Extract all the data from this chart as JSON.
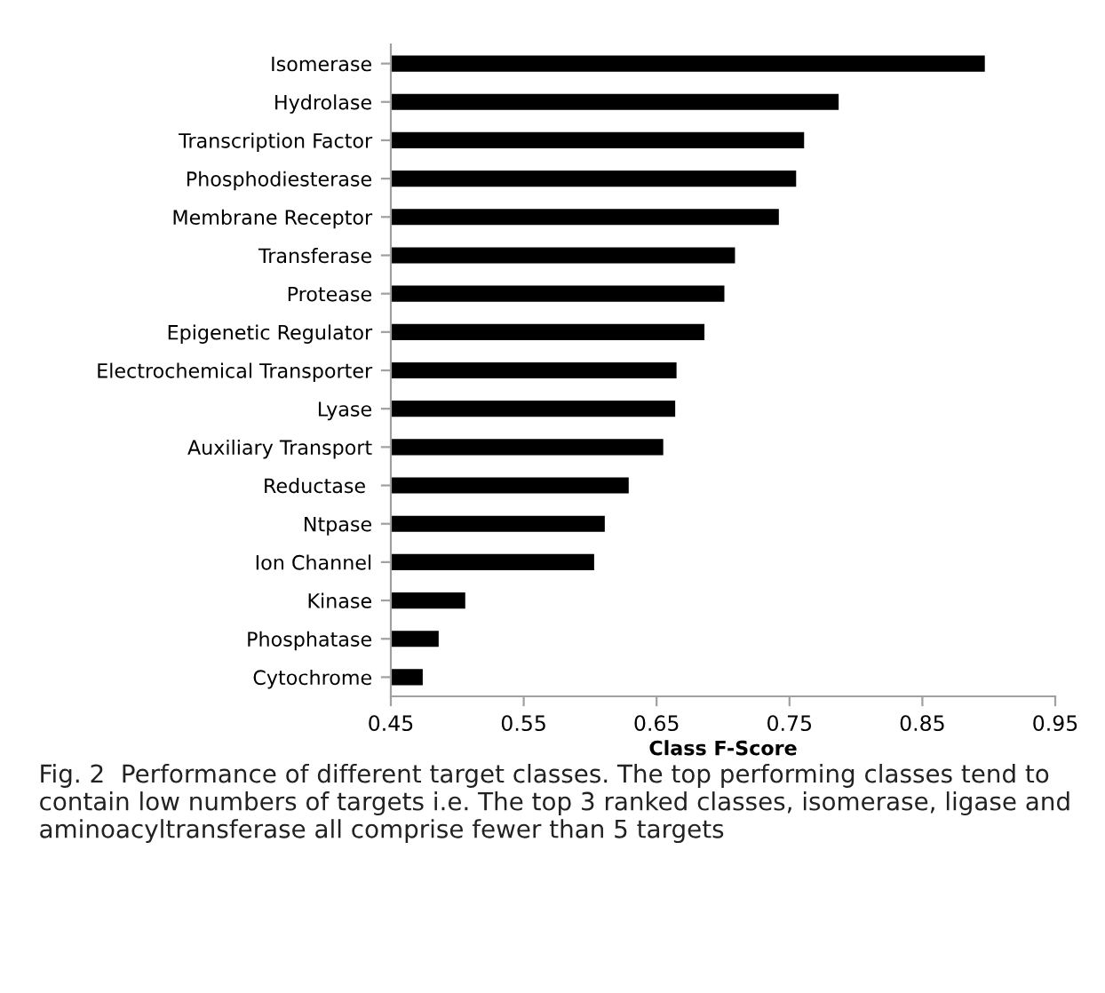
{
  "chart_data": {
    "type": "bar",
    "orientation": "horizontal",
    "xlabel": "Class F-Score",
    "categories": [
      "Isomerase",
      "Hydrolase",
      "Transcription Factor",
      "Phosphodiesterase",
      "Membrane Receptor",
      "Transferase",
      "Protease",
      "Epigenetic Regulator",
      "Electrochemical Transporter",
      "Lyase",
      "Auxiliary Transport",
      "Reductase ",
      "Ntpase",
      "Ion Channel",
      "Kinase",
      "Phosphatase",
      "Cytochrome"
    ],
    "values": [
      0.897,
      0.787,
      0.761,
      0.755,
      0.742,
      0.709,
      0.701,
      0.686,
      0.665,
      0.664,
      0.655,
      0.629,
      0.611,
      0.603,
      0.506,
      0.486,
      0.474
    ],
    "color": "#000000",
    "xlim": [
      0.45,
      0.95
    ],
    "xticks": [
      0.45,
      0.55,
      0.65,
      0.75,
      0.85,
      0.95
    ],
    "grid": false,
    "annotations": [
      "Fig. 2  Performance of different target classes. The top performing classes tend to contain low numbers of targets i.e. The top 3 ranked classes, isomerase, ligase and aminoacyltransferase all comprise fewer than 5 targets"
    ]
  }
}
